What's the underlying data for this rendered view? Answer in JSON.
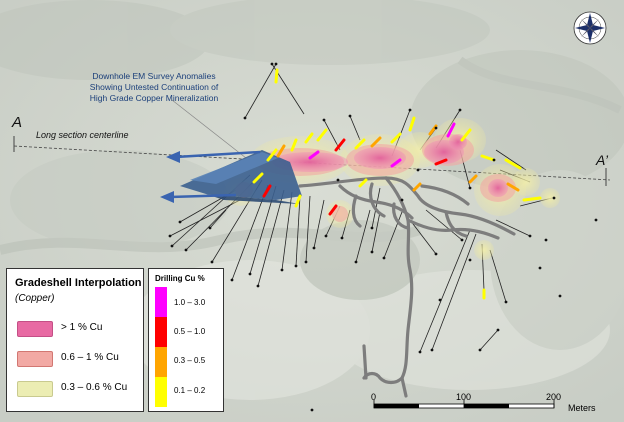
{
  "labels": {
    "section_start": "A",
    "section_end": "A’",
    "centerline": "Long section centerline",
    "em_line1": "Downhole EM Survey Anomalies",
    "em_line2": "Showing Untested Continuation of",
    "em_line3": "High Grade Copper Mineralization"
  },
  "gradeshell_legend": {
    "title": "Gradeshell Interpolation",
    "subtitle": "(Copper)",
    "items": [
      {
        "label": "> 1 % Cu",
        "color": "#e86aa3"
      },
      {
        "label": "0.6 – 1 % Cu",
        "color": "#f2a9a4"
      },
      {
        "label": "0.3 – 0.6 % Cu",
        "color": "#ecedb3"
      }
    ]
  },
  "drilling_legend": {
    "title": "Drilling Cu %",
    "items": [
      {
        "label": "1.0 – 3.0",
        "color": "#ff00ff"
      },
      {
        "label": "0.5 – 1.0",
        "color": "#ff0000"
      },
      {
        "label": "0.3 – 0.5",
        "color": "#ffa500"
      },
      {
        "label": "0.1 – 0.2",
        "color": "#ffff00"
      }
    ]
  },
  "scale_bar": {
    "ticks": [
      "0",
      "100",
      "200"
    ],
    "unit": "Meters"
  },
  "north_arrow": "compass-rose-icon"
}
